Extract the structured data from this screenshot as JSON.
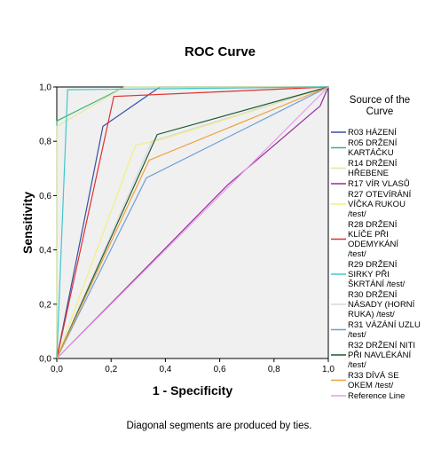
{
  "chart_data": {
    "type": "line",
    "title": "ROC Curve",
    "xlabel": "1 - Specificity",
    "ylabel": "Sensitivity",
    "xlim": [
      0,
      1
    ],
    "ylim": [
      0,
      1
    ],
    "x_ticks": [
      "0,0",
      "0,2",
      "0,4",
      "0,6",
      "0,8",
      "1,0"
    ],
    "y_ticks": [
      "0,0",
      "0,2",
      "0,4",
      "0,6",
      "0,8",
      "1,0"
    ],
    "grid": false,
    "legend_title": [
      "Source of the",
      "Curve"
    ],
    "legend_position": "right",
    "footnote": "Diagonal segments are produced by ties.",
    "series": [
      {
        "name": "R03 HÁZENÍ",
        "color": "#3a4fa0",
        "points": [
          [
            0,
            0
          ],
          [
            0.17,
            0.855
          ],
          [
            0.38,
            1
          ],
          [
            1,
            1
          ]
        ]
      },
      {
        "name": "R05 DRŽENÍ KARTÁČKU",
        "color": "#3cb371",
        "points": [
          [
            0,
            0
          ],
          [
            0,
            0.875
          ],
          [
            0.25,
            1
          ],
          [
            1,
            1
          ]
        ]
      },
      {
        "name": "R14 DRŽENÍ HŘEBENE",
        "color": "#e6e6a8",
        "points": [
          [
            0,
            0
          ],
          [
            0,
            0.855
          ],
          [
            0.25,
            1
          ],
          [
            1,
            1
          ]
        ]
      },
      {
        "name": "R17 VÍR VLASŮ",
        "color": "#9c2a9c",
        "points": [
          [
            0,
            0
          ],
          [
            0.63,
            0.64
          ],
          [
            0.97,
            0.93
          ],
          [
            1,
            1
          ]
        ]
      },
      {
        "name": "R27 OTEVÍRÁNÍ VÍČKA RUKOU /test/",
        "color": "#f0f080",
        "points": [
          [
            0,
            0
          ],
          [
            0.29,
            0.785
          ],
          [
            0.4,
            0.81
          ],
          [
            1,
            1
          ]
        ]
      },
      {
        "name": "R28 DRŽENÍ KLÍČE PŘI ODEMYKÁNÍ /test/",
        "color": "#e03030",
        "points": [
          [
            0,
            0
          ],
          [
            0.21,
            0.965
          ],
          [
            1,
            1
          ]
        ]
      },
      {
        "name": "R29 DRŽENÍ SIRKY PŘI ŠKRTÁNÍ /test/",
        "color": "#40c8c8",
        "points": [
          [
            0,
            0
          ],
          [
            0.04,
            0.99
          ],
          [
            1,
            1
          ]
        ]
      },
      {
        "name": "R30 DRŽENÍ NÁSADY (HORNÍ RUKA) /test/",
        "color": "#d9d9d9",
        "points": [
          [
            0,
            0
          ],
          [
            0.35,
            0.8
          ],
          [
            1,
            1
          ]
        ]
      },
      {
        "name": "R31 VÁZÁNÍ UZLU /test/",
        "color": "#6a9fd8",
        "points": [
          [
            0,
            0
          ],
          [
            0.33,
            0.665
          ],
          [
            1,
            1
          ]
        ]
      },
      {
        "name": "R32 DRŽENÍ NITI PŘI NAVLÉKÁNÍ /test/",
        "color": "#1e5c2e",
        "points": [
          [
            0,
            0
          ],
          [
            0.37,
            0.825
          ],
          [
            1,
            1
          ]
        ]
      },
      {
        "name": "R33 DÍVÁ SE OKEM /test/",
        "color": "#f0a040",
        "points": [
          [
            0,
            0
          ],
          [
            0.34,
            0.73
          ],
          [
            1,
            1
          ]
        ]
      },
      {
        "name": "Reference Line",
        "color": "#e0a0e8",
        "points": [
          [
            0,
            0
          ],
          [
            1,
            1
          ]
        ]
      }
    ]
  }
}
